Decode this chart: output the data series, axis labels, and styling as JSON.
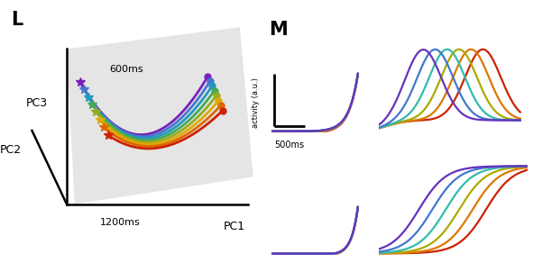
{
  "title_L": "L",
  "title_M": "M",
  "colors_traj": [
    "#7722bb",
    "#4477cc",
    "#2299bb",
    "#44aa55",
    "#99aa22",
    "#ddaa00",
    "#dd6600",
    "#cc2200"
  ],
  "colors_m": [
    "#cc2200",
    "#dd7700",
    "#aaaa00",
    "#33bbaa",
    "#4477cc",
    "#6633bb"
  ],
  "pc1_label": "PC1",
  "pc2_label": "PC2",
  "pc3_label": "PC3",
  "label_600ms": "600ms",
  "label_1200ms": "1200ms",
  "scalebar_label": "500ms",
  "activity_label": "activity (a.u.)"
}
